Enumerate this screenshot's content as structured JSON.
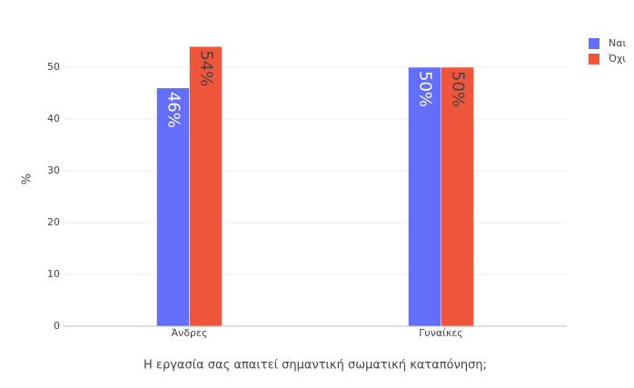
{
  "chart_data": {
    "type": "bar",
    "categories": [
      "Άνδρες",
      "Γυναίκες"
    ],
    "series": [
      {
        "name": "Ναι",
        "color": "#636efa",
        "label_color": "#ffffff",
        "values": [
          46,
          50
        ],
        "value_labels": [
          "46%",
          "50%"
        ]
      },
      {
        "name": "Όχι",
        "color": "#ef553b",
        "label_color": "#444444",
        "values": [
          54,
          50
        ],
        "value_labels": [
          "54%",
          "50%"
        ]
      }
    ],
    "xlabel": "Η εργασία σας απαιτεί σημαντική σωματική καταπόνηση;",
    "ylabel": "%",
    "ylim": [
      0,
      56.84
    ],
    "yticks": [
      0,
      10,
      20,
      30,
      40,
      50
    ],
    "grid": true,
    "legend": "top-right"
  }
}
